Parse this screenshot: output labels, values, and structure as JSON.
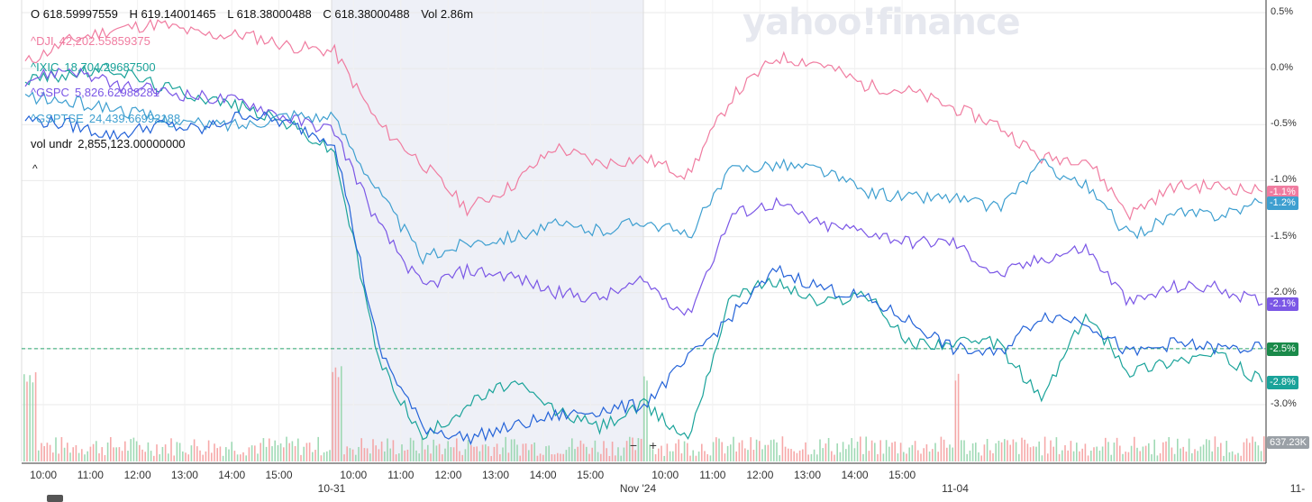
{
  "ohlc": {
    "open": "O 618.59997559",
    "high": "H 619.14001465",
    "low": "L 618.38000488",
    "close": "C 618.38000488",
    "vol": "Vol 2.86m"
  },
  "watermark": "yahoo!finance",
  "legend": [
    {
      "symbol": "^DJI",
      "value": "42,202.55859375",
      "color": "#f07ca0"
    },
    {
      "symbol": "^IXIC",
      "value": "18,704.29687500",
      "color": "#1aa39a"
    },
    {
      "symbol": "^GSPC",
      "value": "5,826.62988281",
      "color": "#7b57e6"
    },
    {
      "symbol": "^GSPTSE",
      "value": "24,439.66992188",
      "color": "#3e9fd0"
    }
  ],
  "vol_line": {
    "label": "vol undr",
    "value": "2,855,123.00000000"
  },
  "collapse_icon": "^",
  "zoom": {
    "minus": "−",
    "plus": "+"
  },
  "vol_badge": "637.23K",
  "chart_data": {
    "type": "line",
    "ylim": [
      -3.6,
      0.6
    ],
    "y_ticks": [
      {
        "value": 0.5,
        "label": "0.5%"
      },
      {
        "value": 0.0,
        "label": "0.0%"
      },
      {
        "value": -0.5,
        "label": "-0.5%"
      },
      {
        "value": -1.0,
        "label": "-1.0%"
      },
      {
        "value": -1.5,
        "label": "-1.5%"
      },
      {
        "value": -2.0,
        "label": "-2.0%"
      },
      {
        "value": -2.5,
        "label": "-2.5%"
      },
      {
        "value": -3.0,
        "label": "-3.0%"
      }
    ],
    "x_ticks": [
      "10:00",
      "11:00",
      "12:00",
      "13:00",
      "14:00",
      "15:00",
      "10:00",
      "11:00",
      "12:00",
      "13:00",
      "14:00",
      "15:00",
      "10:00",
      "11:00",
      "12:00",
      "13:00",
      "14:00",
      "15:00"
    ],
    "day_labels": [
      "10-31",
      "Nov '24",
      "11-04",
      "11-"
    ],
    "shaded_day_index": 1,
    "reference_line": -2.5,
    "series": [
      {
        "name": "^DJI",
        "color": "#f07ca0",
        "end_label": "-1.1%",
        "values": [
          0.05,
          0.25,
          0.35,
          0.4,
          0.3,
          0.3,
          0.2,
          0.15,
          -0.5,
          -0.85,
          -1.25,
          -1.05,
          -0.7,
          -0.85,
          -0.8,
          -0.95,
          -0.25,
          0.1,
          0.05,
          -0.15,
          -0.2,
          -0.35,
          -0.5,
          -0.8,
          -0.8,
          -1.3,
          -1.05,
          -1.05,
          -1.1
        ]
      },
      {
        "name": "^IXIC",
        "color": "#1aa39a",
        "end_label": "-2.8%",
        "values": [
          -0.1,
          -0.05,
          0.0,
          -0.15,
          -0.25,
          -0.35,
          -0.5,
          -0.75,
          -2.6,
          -3.3,
          -3.0,
          -2.8,
          -3.05,
          -3.2,
          -3.0,
          -3.3,
          -2.0,
          -1.9,
          -2.1,
          -2.0,
          -2.45,
          -2.45,
          -2.45,
          -2.95,
          -2.2,
          -2.7,
          -2.6,
          -2.55,
          -2.8
        ]
      },
      {
        "name": "^GSPC",
        "color": "#7b57e6",
        "end_label": "-2.1%",
        "values": [
          -0.1,
          0.0,
          -0.15,
          -0.2,
          -0.25,
          -0.3,
          -0.45,
          -0.55,
          -1.4,
          -1.95,
          -1.8,
          -1.85,
          -2.0,
          -2.05,
          -1.9,
          -2.2,
          -1.3,
          -1.2,
          -1.4,
          -1.45,
          -1.55,
          -1.55,
          -1.85,
          -1.7,
          -1.6,
          -2.1,
          -1.95,
          -1.95,
          -2.1
        ]
      },
      {
        "name": "^GSPTSE",
        "color": "#3e9fd0",
        "end_label": "-1.2%",
        "values": [
          -0.25,
          -0.3,
          -0.35,
          -0.45,
          -0.5,
          -0.5,
          -0.4,
          -0.45,
          -1.1,
          -1.7,
          -1.55,
          -1.5,
          -1.4,
          -1.45,
          -1.35,
          -1.5,
          -0.9,
          -0.85,
          -0.9,
          -1.1,
          -1.15,
          -1.15,
          -1.25,
          -0.85,
          -1.05,
          -1.5,
          -1.3,
          -1.3,
          -1.2
        ]
      },
      {
        "name": "vol undr",
        "color": "#2463d8",
        "end_label": "-2.5%",
        "values": [
          -0.45,
          -0.5,
          -0.6,
          -0.5,
          -0.55,
          -0.4,
          -0.5,
          -0.65,
          -2.5,
          -3.2,
          -3.3,
          -3.2,
          -3.1,
          -3.05,
          -3.0,
          -2.6,
          -2.2,
          -1.8,
          -1.95,
          -2.05,
          -2.25,
          -2.5,
          -2.55,
          -2.2,
          -2.25,
          -2.55,
          -2.45,
          -2.5,
          -2.5
        ]
      }
    ]
  }
}
